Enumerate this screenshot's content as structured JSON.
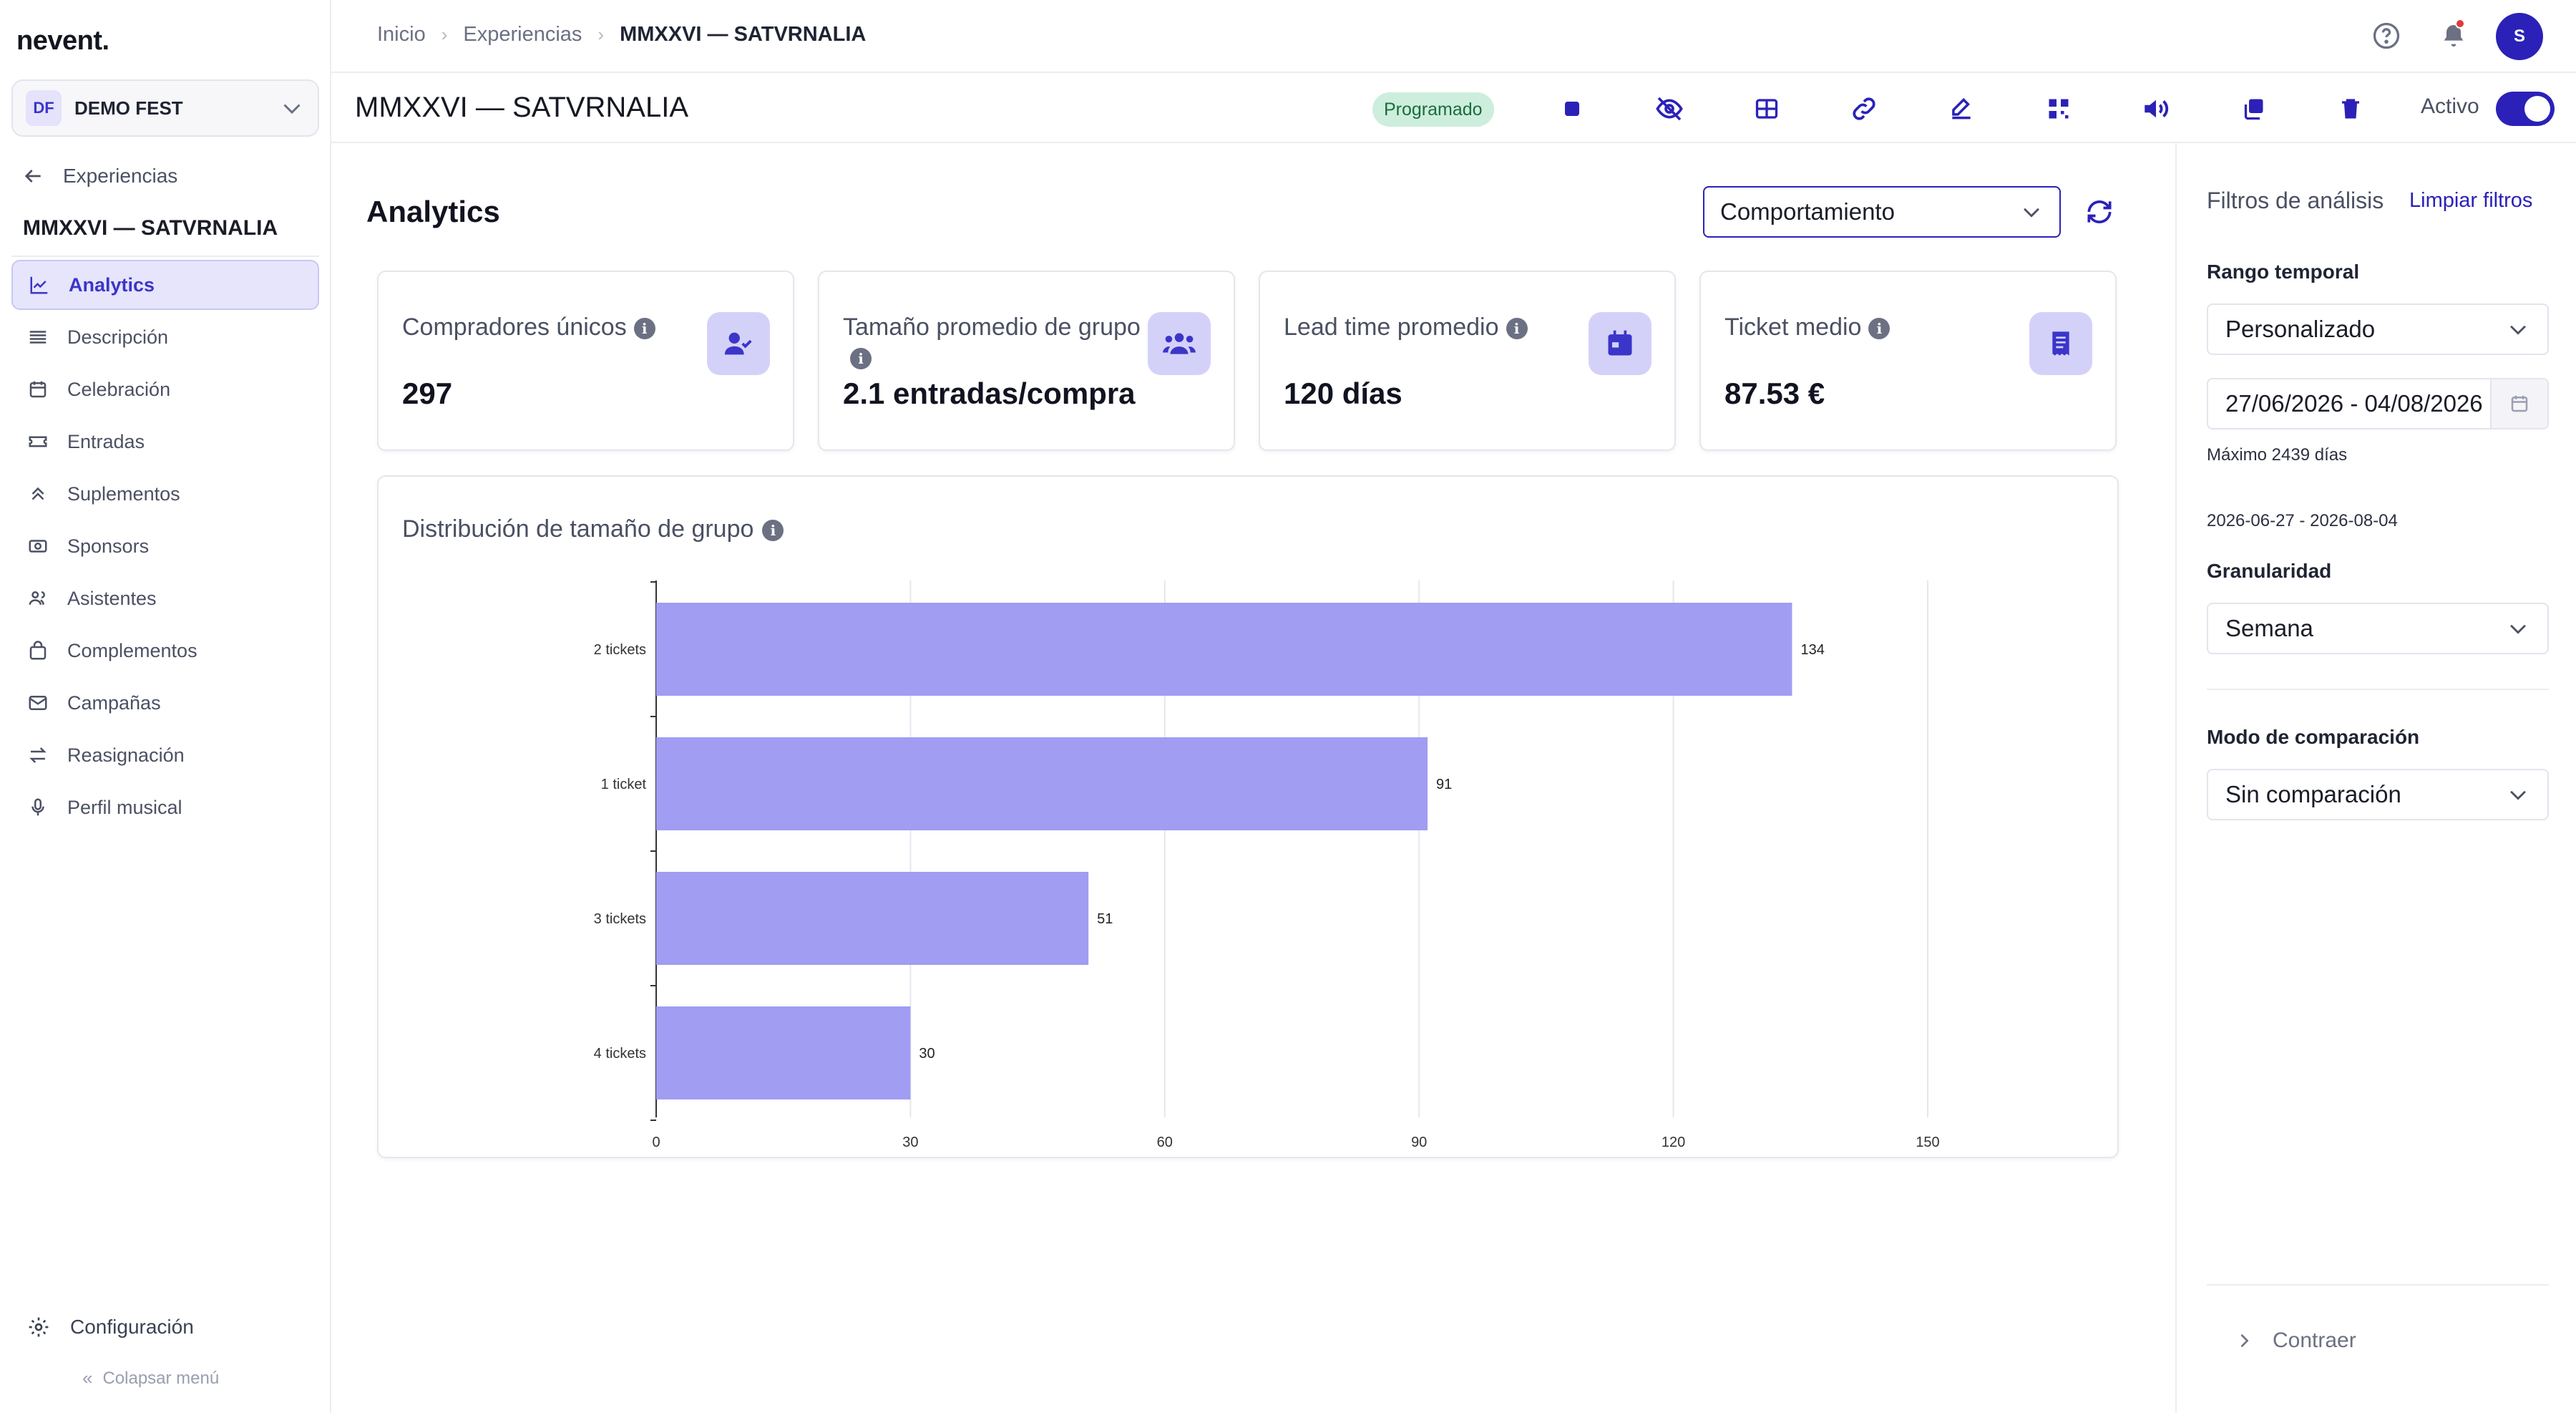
{
  "app": {
    "logo": "nevent."
  },
  "org": {
    "initials": "DF",
    "name": "DEMO FEST"
  },
  "sidebar": {
    "back_label": "Experiencias",
    "event_title": "MMXXVI — SATVRNALIA",
    "items": [
      {
        "label": "Analytics",
        "icon": "chart-line-icon",
        "active": true
      },
      {
        "label": "Descripción",
        "icon": "lines-icon"
      },
      {
        "label": "Celebración",
        "icon": "calendar-icon"
      },
      {
        "label": "Entradas",
        "icon": "ticket-icon"
      },
      {
        "label": "Suplementos",
        "icon": "double-chevron-up-icon"
      },
      {
        "label": "Sponsors",
        "icon": "money-icon"
      },
      {
        "label": "Asistentes",
        "icon": "users-icon"
      },
      {
        "label": "Complementos",
        "icon": "bag-icon"
      },
      {
        "label": "Campañas",
        "icon": "mail-icon"
      },
      {
        "label": "Reasignación",
        "icon": "swap-icon"
      },
      {
        "label": "Perfil musical",
        "icon": "mic-icon"
      }
    ],
    "config_label": "Configuración",
    "collapse_label": "Colapsar menú"
  },
  "breadcrumb": {
    "items": [
      "Inicio",
      "Experiencias"
    ],
    "current": "MMXXVI — SATVRNALIA"
  },
  "user": {
    "initial": "S"
  },
  "header": {
    "title": "MMXXVI — SATVRNALIA",
    "status": "Programado",
    "active_label": "Activo",
    "toolbar_icons": [
      "stop-icon",
      "eye-off-icon",
      "grid-icon",
      "link-icon",
      "edit-icon",
      "qr-icon",
      "speaker-icon",
      "copy-icon",
      "trash-icon"
    ]
  },
  "main": {
    "title": "Analytics",
    "view_select": "Comportamiento"
  },
  "cards": [
    {
      "label": "Compradores únicos",
      "value": "297",
      "icon": "user-check-icon"
    },
    {
      "label": "Tamaño promedio de grupo",
      "value": "2.1 entradas/compra",
      "icon": "group-icon"
    },
    {
      "label": "Lead time promedio",
      "value": "120 días",
      "icon": "calendar-event-icon"
    },
    {
      "label": "Ticket medio",
      "value": "87.53 €",
      "icon": "receipt-icon"
    }
  ],
  "chart": {
    "title": "Distribución de tamaño de grupo"
  },
  "chart_data": {
    "type": "bar",
    "orientation": "horizontal",
    "categories": [
      "2 tickets",
      "1 ticket",
      "3 tickets",
      "4 tickets"
    ],
    "values": [
      134,
      91,
      51,
      30
    ],
    "xlim": [
      0,
      150
    ],
    "xticks": [
      0,
      30,
      60,
      90,
      120,
      150
    ],
    "grid": true,
    "color": "#a09df3"
  },
  "filters": {
    "title": "Filtros de análisis",
    "clear_label": "Limpiar filtros",
    "range_label": "Rango temporal",
    "range_value": "Personalizado",
    "date_value": "27/06/2026 - 04/08/2026",
    "max_note": "Máximo 2439 días",
    "range_summary": "2026-06-27 - 2026-08-04",
    "granularity_label": "Granularidad",
    "granularity_value": "Semana",
    "compare_label": "Modo de comparación",
    "compare_value": "Sin comparación",
    "collapse_label": "Contraer"
  },
  "colors": {
    "accent": "#2b21b8",
    "bar": "#a09df3",
    "badge_bg": "#cdeedd",
    "badge_text": "#1c6b3e"
  }
}
